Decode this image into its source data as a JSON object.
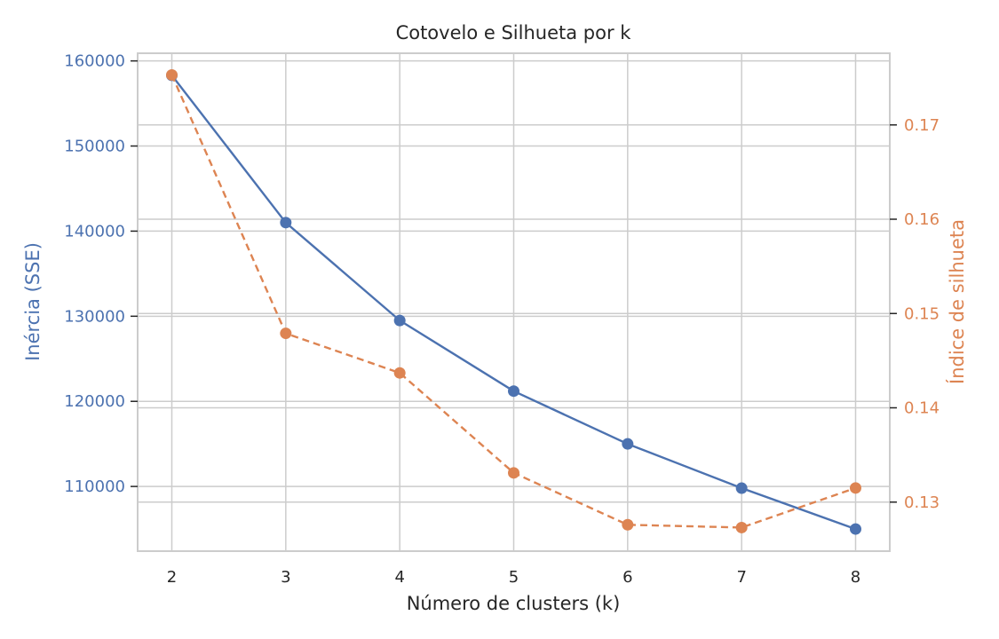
{
  "chart_data": {
    "type": "line",
    "title": "Cotovelo e Silhueta por k",
    "xlabel": "Número de clusters (k)",
    "x": [
      2,
      3,
      4,
      5,
      6,
      7,
      8
    ],
    "xticks": [
      "2",
      "3",
      "4",
      "5",
      "6",
      "7",
      "8"
    ],
    "xlim": [
      1.7,
      8.3
    ],
    "grid": true,
    "series": [
      {
        "name": "Inércia (SSE)",
        "axis": "left",
        "color": "#4c72b0",
        "line_style": "solid",
        "marker": "circle",
        "values": [
          158300,
          141000,
          129500,
          121200,
          115000,
          109800,
          105000
        ]
      },
      {
        "name": "Índice de silhueta",
        "axis": "right",
        "color": "#dd8452",
        "line_style": "dashed",
        "marker": "circle",
        "values": [
          0.1753,
          0.1479,
          0.1437,
          0.1331,
          0.1276,
          0.1273,
          0.1315
        ]
      }
    ],
    "y_left": {
      "label": "Inércia (SSE)",
      "color": "#4c72b0",
      "ylim": [
        102400,
        160900
      ],
      "ticks": [
        110000,
        120000,
        130000,
        140000,
        150000,
        160000
      ],
      "tick_labels": [
        "110000",
        "120000",
        "130000",
        "140000",
        "150000",
        "160000"
      ]
    },
    "y_right": {
      "label": "Índice de silhueta",
      "color": "#dd8452",
      "ylim": [
        0.1248,
        0.1776
      ],
      "ticks": [
        0.13,
        0.14,
        0.15,
        0.16,
        0.17
      ],
      "tick_labels": [
        "0.13",
        "0.14",
        "0.15",
        "0.16",
        "0.17"
      ]
    }
  }
}
